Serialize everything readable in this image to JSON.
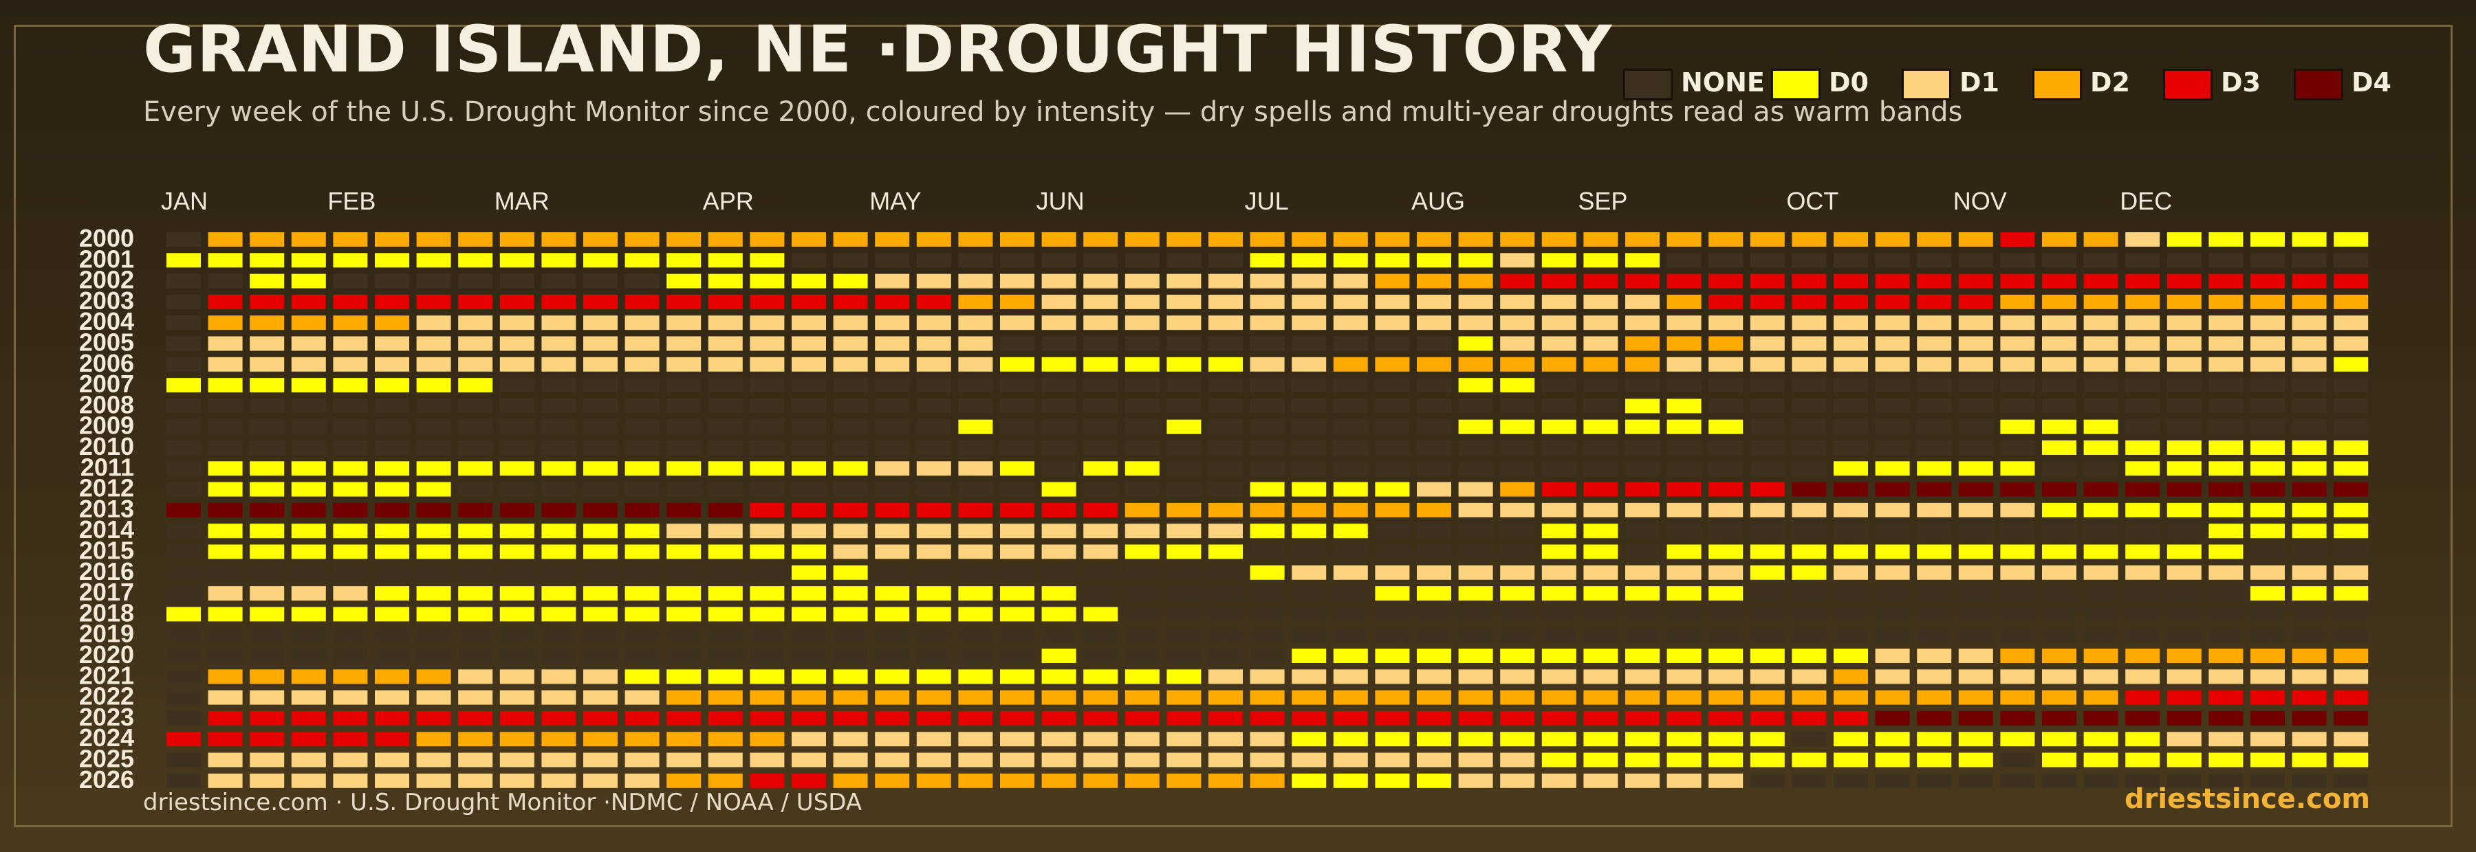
{
  "header": {
    "title": "GRAND ISLAND, NE ·DROUGHT HISTORY",
    "subtitle": "Every week of the U.S. Drought Monitor since 2000, coloured by intensity — dry spells and multi-year droughts read as warm bands"
  },
  "legend": [
    {
      "label": "NONE",
      "color": "#3d3220"
    },
    {
      "label": "D0",
      "color": "#ffff00"
    },
    {
      "label": "D1",
      "color": "#fcd37f"
    },
    {
      "label": "D2",
      "color": "#ffaa00"
    },
    {
      "label": "D3",
      "color": "#e60000"
    },
    {
      "label": "D4",
      "color": "#730000"
    }
  ],
  "footer": {
    "source": "driestsince.com  · U.S. Drought Monitor ·NDMC / NOAA / USDA",
    "brand": "driestsince.com"
  },
  "chart_data": {
    "type": "heatmap",
    "title": "GRAND ISLAND, NE ·DROUGHT HISTORY",
    "subtitle": "Every week of the U.S. Drought Monitor since 2000, coloured by intensity — dry spells and multi-year droughts read as warm bands",
    "x_label": "",
    "y_label": "",
    "month_labels": [
      "JAN",
      "FEB",
      "MAR",
      "APR",
      "MAY",
      "JUN",
      "JUL",
      "AUG",
      "SEP",
      "OCT",
      "NOV",
      "DEC"
    ],
    "month_start_weeks": [
      0,
      4,
      8,
      13,
      17,
      21,
      26,
      30,
      34,
      39,
      43,
      47
    ],
    "weeks_per_year": 53,
    "categories": [
      "NONE",
      "D0",
      "D1",
      "D2",
      "D3",
      "D4"
    ],
    "colors": [
      "#3d3220",
      "#ffff00",
      "#fcd37f",
      "#ffaa00",
      "#e60000",
      "#730000"
    ],
    "years": [
      2000,
      2001,
      2002,
      2003,
      2004,
      2005,
      2006,
      2007,
      2008,
      2009,
      2010,
      2011,
      2012,
      2013,
      2014,
      2015,
      2016,
      2017,
      2018,
      2019,
      2020,
      2021,
      2022,
      2023,
      2024,
      2025,
      2026
    ],
    "levels_encoding": "one digit per week, 0=NONE, 1=D0, 2=D1, 3=D2, 4=D3, 5=D4",
    "levels": [
      "03333333333333333333333333333333333333333333433211111",
      "11111111111111100000000000111111211100000000000000000",
      "00110000000011111222222222222333444444444444444444444",
      "04444444444444444443322222222222222234444444333333333",
      "03333322222222222222222222222222222222222222222222222",
      "02222222222222222222000000000001222333222222222222222",
      "02222222222222222222111111223333333322222222222222221",
      "11111111000000000000000000000001100000000000000000000",
      "00000000000000000000000000000000000110000000000000000",
      "00000000000000000001000010000001111111000000111000000",
      "00000000000000000000000000000000000000000000011111111",
      "01111111111111111222101100000000000000001111100111111",
      "01111110000000000000010000111122344444455555555555555",
      "55555555555555444444444333333332222222222222211111111",
      "01111111111122222222222222111000011000000000000001111",
      "01111111111111112222222111000000011011111111111111000",
      "00000000000000011000000000122222222222112222222222222",
      "02222111111111111111110000000111111111000000000000111",
      "11111111111111111111111000000000000000000000000000000",
      "00000000000000000000000000000000000000000000000000000",
      "00000000000000000000010000011111111111111222333333333",
      "03333332222111111111111112222222222222223222222222222",
      "02222222222233333333333333333333333333333333333444444",
      "04444444444444444444444444444444444444444555555555555",
      "44444433333333322222222222211111111111101111111122222",
      "02222222222222222222222222222222211111111111011111111",
      "02222222222233443333333333311112222222000000000000000"
    ]
  }
}
